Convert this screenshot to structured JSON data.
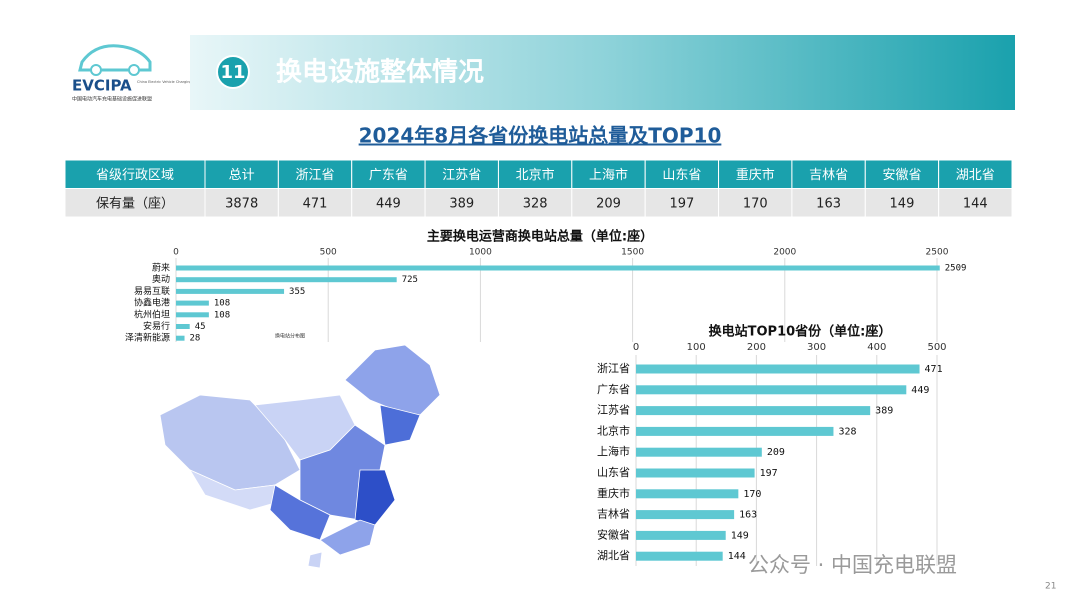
{
  "logo": {
    "name": "EVCIPA",
    "english": "China Electric Vehicle Charging Infrastructure Promotion Alliance",
    "chinese": "中国电动汽车充电基础设施促进联盟"
  },
  "header": {
    "number": "11",
    "title": "换电设施整体情况"
  },
  "subtitle": "2024年8月各省份换电站总量及TOP10",
  "table": {
    "header": [
      "省级行政区域",
      "总计",
      "浙江省",
      "广东省",
      "江苏省",
      "北京市",
      "上海市",
      "山东省",
      "重庆市",
      "吉林省",
      "安徽省",
      "湖北省"
    ],
    "rows": [
      [
        "保有量（座）",
        3878,
        471,
        449,
        389,
        328,
        209,
        197,
        170,
        163,
        149,
        144
      ]
    ]
  },
  "map_label": "换电站分布图",
  "chart_data": [
    {
      "type": "bar",
      "orientation": "horizontal",
      "title": "主要换电运营商换电站总量（单位:座）",
      "categories": [
        "蔚来",
        "奥动",
        "易易互联",
        "协鑫电港",
        "杭州伯坦",
        "安易行",
        "泽清新能源"
      ],
      "values": [
        2509,
        725,
        355,
        108,
        108,
        45,
        28
      ],
      "color": "#5ec8d2",
      "xlim": [
        0,
        2500
      ],
      "xticks": [
        0,
        500,
        1000,
        1500,
        2000,
        2500
      ],
      "grid": true
    },
    {
      "type": "bar",
      "orientation": "horizontal",
      "title": "换电站TOP10省份（单位:座）",
      "categories": [
        "浙江省",
        "广东省",
        "江苏省",
        "北京市",
        "上海市",
        "山东省",
        "重庆市",
        "吉林省",
        "安徽省",
        "湖北省"
      ],
      "values": [
        471,
        449,
        389,
        328,
        209,
        197,
        170,
        163,
        149,
        144
      ],
      "color": "#5ec8d2",
      "xlim": [
        0,
        500
      ],
      "xticks": [
        0,
        100,
        200,
        300,
        400,
        500
      ],
      "grid": true
    }
  ],
  "watermark": "公众号 · 中国充电联盟",
  "page_number": "21"
}
